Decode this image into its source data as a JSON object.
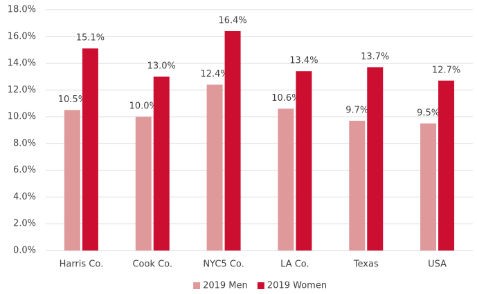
{
  "chart_data": {
    "type": "bar",
    "categories": [
      "Harris Co.",
      "Cook Co.",
      "NYC5 Co.",
      "LA Co.",
      "Texas",
      "USA"
    ],
    "series": [
      {
        "name": "2019 Men",
        "color": "#e0999b",
        "values": [
          10.5,
          10.0,
          12.4,
          10.6,
          9.7,
          9.5
        ],
        "value_labels": [
          "10.5%",
          "10.0%",
          "12.4%",
          "10.6%",
          "9.7%",
          "9.5%"
        ]
      },
      {
        "name": "2019 Women",
        "color": "#cc0e30",
        "values": [
          15.1,
          13.0,
          16.4,
          13.4,
          13.7,
          12.7
        ],
        "value_labels": [
          "15.1%",
          "13.0%",
          "16.4%",
          "13.4%",
          "13.7%",
          "12.7%"
        ]
      }
    ],
    "ylim": [
      0,
      18
    ],
    "yticks": [
      {
        "value": 0,
        "label": "0.0%"
      },
      {
        "value": 2,
        "label": "2.0%"
      },
      {
        "value": 4,
        "label": "4.0%"
      },
      {
        "value": 6,
        "label": "6.0%"
      },
      {
        "value": 8,
        "label": "8.0%"
      },
      {
        "value": 10,
        "label": "10.0%"
      },
      {
        "value": 12,
        "label": "12.0%"
      },
      {
        "value": 14,
        "label": "14.0%"
      },
      {
        "value": 16,
        "label": "16.0%"
      },
      {
        "value": 18,
        "label": "18.0%"
      }
    ],
    "grid": true,
    "legend": "bottom"
  }
}
